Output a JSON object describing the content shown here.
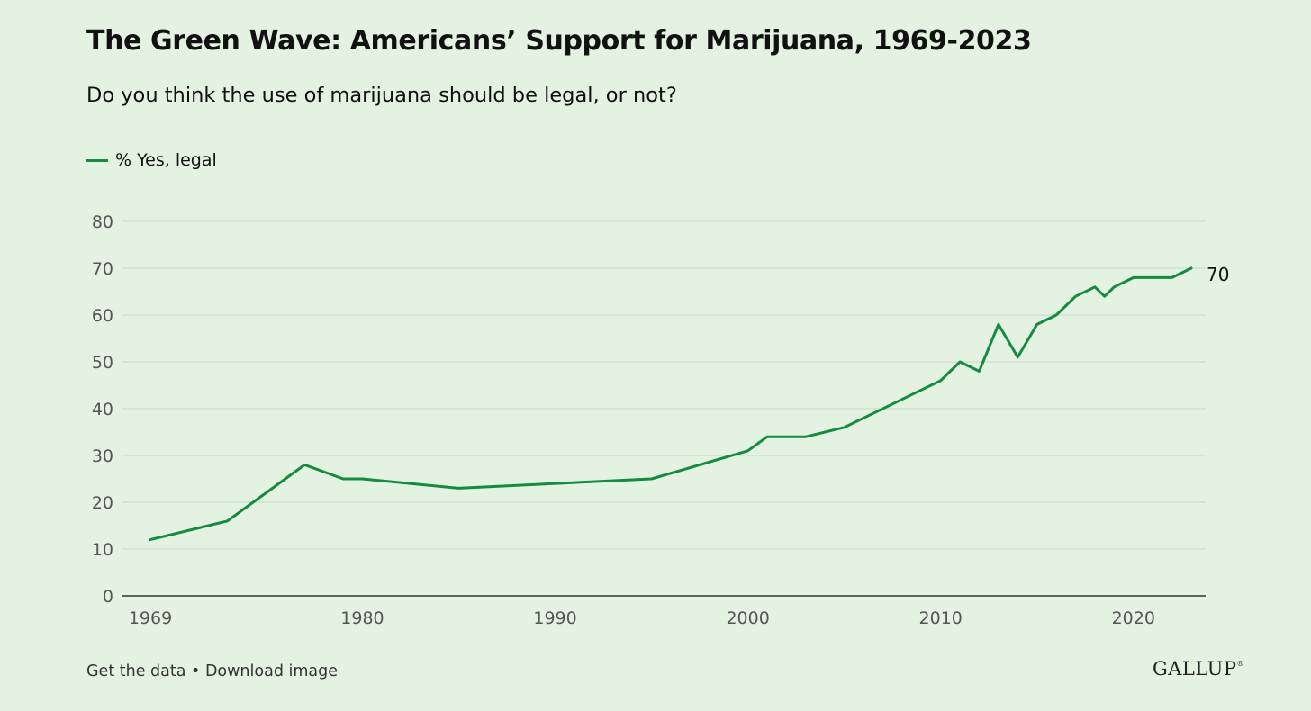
{
  "title": "The Green Wave: Americans’ Support for Marijuana, 1969-2023",
  "subtitle": "Do you think the use of marijuana should be legal, or not?",
  "footer": {
    "get_data": "Get the data",
    "separator": "•",
    "download": "Download image"
  },
  "logo": {
    "text": "GALLUP",
    "mark": "®"
  },
  "colors": {
    "line": "#168a3f",
    "background": "#e4f3e1",
    "grid": "#c9d9c7",
    "axis": "#111111",
    "tick_text": "#555555"
  },
  "chart_data": {
    "type": "line",
    "title": "The Green Wave: Americans’ Support for Marijuana, 1969-2023",
    "subtitle": "Do you think the use of marijuana should be legal, or not?",
    "xlabel": "",
    "ylabel": "",
    "x_ticks": [
      "1969",
      "1980",
      "1990",
      "2000",
      "2010",
      "2020"
    ],
    "y_ticks": [
      0,
      10,
      20,
      30,
      40,
      50,
      60,
      70,
      80
    ],
    "xlim": [
      1969,
      2023
    ],
    "ylim": [
      0,
      80
    ],
    "grid": true,
    "legend": "top-left",
    "end_label": "70",
    "series": [
      {
        "name": "% Yes, legal",
        "x": [
          1969,
          1972,
          1973,
          1977,
          1979,
          1980,
          1985,
          1995,
          2000,
          2001,
          2003,
          2005,
          2009,
          2010,
          2011,
          2012,
          2013,
          2014,
          2015,
          2016,
          2017,
          2018,
          2018.5,
          2019,
          2020,
          2021,
          2022,
          2023
        ],
        "values": [
          12,
          15,
          16,
          28,
          25,
          25,
          23,
          25,
          31,
          34,
          34,
          36,
          44,
          46,
          50,
          48,
          58,
          51,
          58,
          60,
          64,
          66,
          64,
          66,
          68,
          68,
          68,
          70
        ]
      }
    ]
  }
}
